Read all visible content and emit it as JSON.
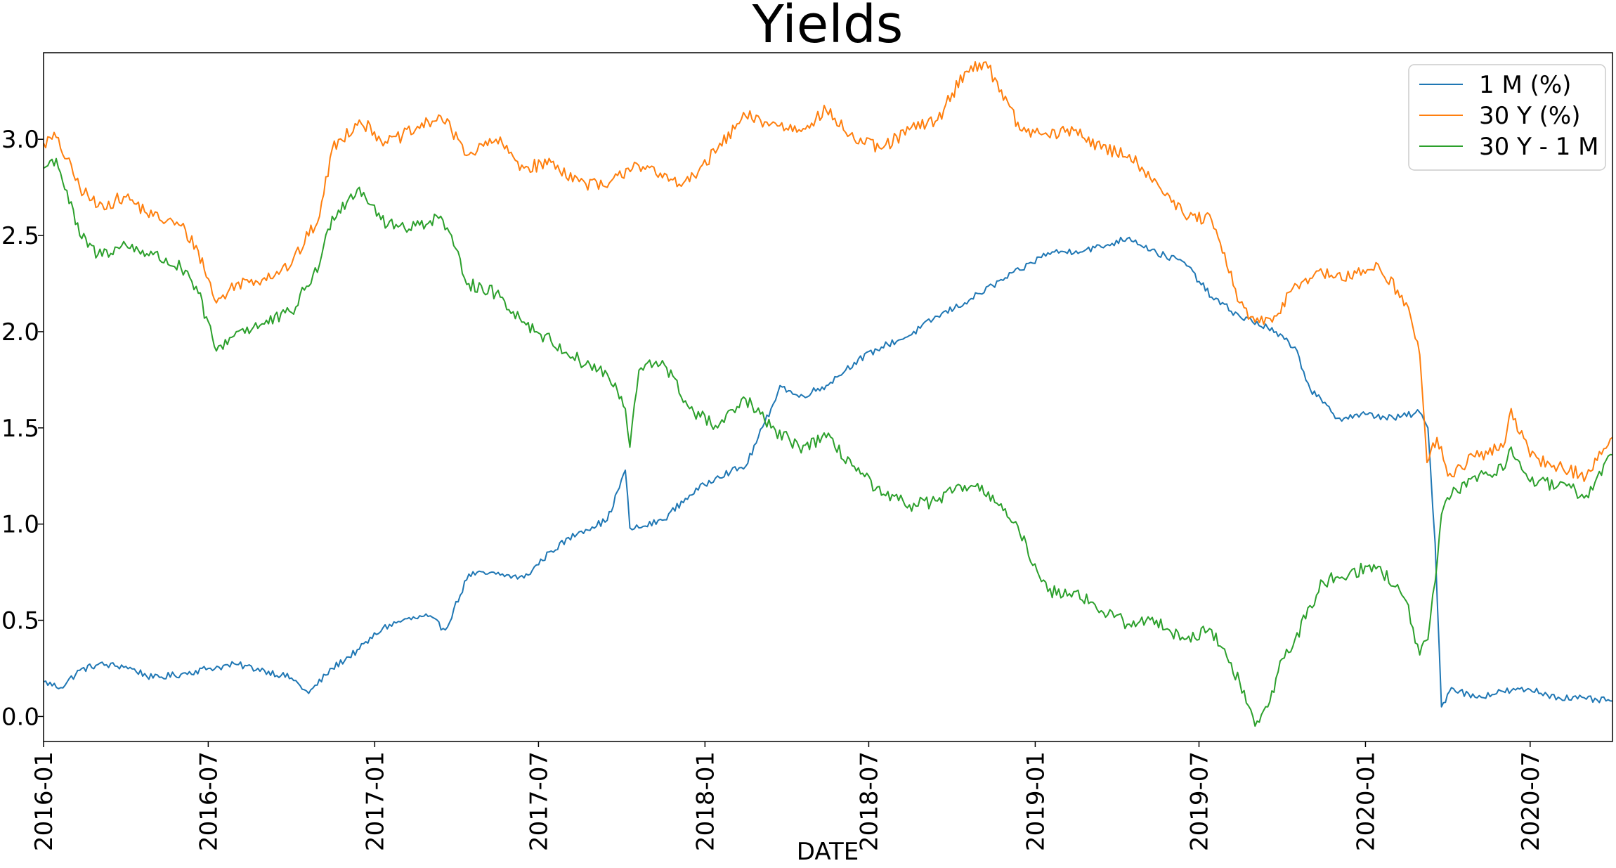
{
  "chart_data": {
    "type": "line",
    "title": "Yields",
    "xlabel": "DATE",
    "ylabel": "",
    "ylim": [
      -0.13,
      3.45
    ],
    "xlim": [
      "2016-01-01",
      "2020-09-30"
    ],
    "y_ticks": [
      0.0,
      0.5,
      1.0,
      1.5,
      2.0,
      2.5,
      3.0
    ],
    "y_tick_labels": [
      "0.0",
      "0.5",
      "1.0",
      "1.5",
      "2.0",
      "2.5",
      "3.0"
    ],
    "x_ticks": [
      "2016-01-01",
      "2016-07-01",
      "2017-01-01",
      "2017-07-01",
      "2018-01-01",
      "2018-07-01",
      "2019-01-01",
      "2019-07-01",
      "2020-01-01",
      "2020-07-01"
    ],
    "x_tick_labels": [
      "2016-01",
      "2016-07",
      "2017-01",
      "2017-07",
      "2018-01",
      "2018-07",
      "2019-01",
      "2019-07",
      "2020-01",
      "2020-07"
    ],
    "grid": false,
    "legend_position": "top-right",
    "series": [
      {
        "name": "1 M (%)",
        "color": "#1f77b4",
        "x": [
          "2016-01-01",
          "2016-01-20",
          "2016-02-10",
          "2016-03-01",
          "2016-04-01",
          "2016-05-01",
          "2016-06-01",
          "2016-07-01",
          "2016-08-01",
          "2016-09-01",
          "2016-10-01",
          "2016-10-20",
          "2016-11-15",
          "2016-12-15",
          "2017-01-10",
          "2017-02-01",
          "2017-03-01",
          "2017-03-20",
          "2017-04-15",
          "2017-05-15",
          "2017-06-15",
          "2017-07-15",
          "2017-08-15",
          "2017-09-15",
          "2017-10-05",
          "2017-10-10",
          "2017-10-20",
          "2017-11-15",
          "2017-12-15",
          "2018-01-15",
          "2018-02-15",
          "2018-03-15",
          "2018-03-25",
          "2018-04-15",
          "2018-05-15",
          "2018-06-15",
          "2018-07-15",
          "2018-08-15",
          "2018-09-15",
          "2018-10-15",
          "2018-11-15",
          "2018-12-15",
          "2019-01-15",
          "2019-02-15",
          "2019-03-15",
          "2019-04-15",
          "2019-05-15",
          "2019-06-15",
          "2019-07-15",
          "2019-08-15",
          "2019-09-15",
          "2019-10-15",
          "2019-11-01",
          "2019-12-01",
          "2020-01-01",
          "2020-02-01",
          "2020-03-01",
          "2020-03-10",
          "2020-03-18",
          "2020-03-25",
          "2020-04-05",
          "2020-05-01",
          "2020-06-01",
          "2020-07-01",
          "2020-08-01",
          "2020-09-01",
          "2020-09-30"
        ],
        "values": [
          0.18,
          0.15,
          0.24,
          0.27,
          0.26,
          0.2,
          0.22,
          0.25,
          0.27,
          0.24,
          0.2,
          0.12,
          0.25,
          0.35,
          0.46,
          0.5,
          0.52,
          0.45,
          0.74,
          0.74,
          0.72,
          0.86,
          0.96,
          1.02,
          1.28,
          0.98,
          0.98,
          1.02,
          1.15,
          1.25,
          1.3,
          1.6,
          1.72,
          1.66,
          1.72,
          1.84,
          1.92,
          1.98,
          2.08,
          2.15,
          2.24,
          2.32,
          2.41,
          2.42,
          2.44,
          2.49,
          2.41,
          2.36,
          2.18,
          2.08,
          2.02,
          1.92,
          1.7,
          1.55,
          1.57,
          1.55,
          1.58,
          1.5,
          0.9,
          0.05,
          0.15,
          0.1,
          0.13,
          0.14,
          0.1,
          0.09,
          0.08
        ]
      },
      {
        "name": "30 Y (%)",
        "color": "#ff7f0e",
        "x": [
          "2016-01-01",
          "2016-01-15",
          "2016-02-10",
          "2016-03-01",
          "2016-04-01",
          "2016-05-01",
          "2016-06-01",
          "2016-06-20",
          "2016-07-10",
          "2016-08-01",
          "2016-09-01",
          "2016-10-01",
          "2016-11-01",
          "2016-11-15",
          "2016-12-15",
          "2017-01-15",
          "2017-02-15",
          "2017-03-15",
          "2017-04-15",
          "2017-05-15",
          "2017-06-15",
          "2017-07-15",
          "2017-08-15",
          "2017-09-15",
          "2017-10-15",
          "2017-11-15",
          "2017-12-15",
          "2018-01-15",
          "2018-02-15",
          "2018-03-15",
          "2018-04-15",
          "2018-05-15",
          "2018-06-15",
          "2018-07-15",
          "2018-08-15",
          "2018-09-15",
          "2018-10-15",
          "2018-11-05",
          "2018-11-20",
          "2018-12-15",
          "2019-01-15",
          "2019-02-15",
          "2019-03-15",
          "2019-04-15",
          "2019-05-15",
          "2019-06-15",
          "2019-07-15",
          "2019-08-15",
          "2019-09-01",
          "2019-09-20",
          "2019-10-15",
          "2019-11-15",
          "2019-12-15",
          "2020-01-15",
          "2020-02-15",
          "2020-03-01",
          "2020-03-09",
          "2020-03-20",
          "2020-04-01",
          "2020-05-01",
          "2020-06-01",
          "2020-06-10",
          "2020-07-01",
          "2020-08-01",
          "2020-09-01",
          "2020-09-30"
        ],
        "values": [
          2.98,
          3.01,
          2.75,
          2.65,
          2.7,
          2.6,
          2.55,
          2.42,
          2.15,
          2.25,
          2.28,
          2.35,
          2.6,
          2.95,
          3.1,
          2.98,
          3.05,
          3.12,
          2.92,
          3.0,
          2.85,
          2.88,
          2.78,
          2.75,
          2.88,
          2.8,
          2.78,
          2.95,
          3.12,
          3.08,
          3.05,
          3.15,
          3.0,
          2.95,
          3.05,
          3.1,
          3.35,
          3.4,
          3.3,
          3.05,
          3.02,
          3.05,
          2.95,
          2.92,
          2.78,
          2.6,
          2.58,
          2.15,
          2.05,
          2.05,
          2.25,
          2.3,
          2.28,
          2.35,
          2.15,
          1.88,
          1.32,
          1.45,
          1.25,
          1.35,
          1.4,
          1.6,
          1.35,
          1.3,
          1.25,
          1.45
        ]
      },
      {
        "name": "30 Y - 1 M",
        "color": "#2ca02c",
        "x": [
          "2016-01-01",
          "2016-01-15",
          "2016-02-10",
          "2016-03-01",
          "2016-04-01",
          "2016-05-01",
          "2016-06-01",
          "2016-06-20",
          "2016-07-10",
          "2016-08-01",
          "2016-09-01",
          "2016-10-01",
          "2016-11-01",
          "2016-11-15",
          "2016-12-15",
          "2017-01-15",
          "2017-02-15",
          "2017-03-15",
          "2017-04-15",
          "2017-05-15",
          "2017-06-15",
          "2017-07-15",
          "2017-08-15",
          "2017-09-15",
          "2017-10-05",
          "2017-10-10",
          "2017-10-20",
          "2017-11-15",
          "2017-12-15",
          "2018-01-15",
          "2018-02-15",
          "2018-03-15",
          "2018-04-15",
          "2018-05-15",
          "2018-06-15",
          "2018-07-15",
          "2018-08-15",
          "2018-09-15",
          "2018-10-15",
          "2018-11-15",
          "2018-12-15",
          "2019-01-15",
          "2019-02-15",
          "2019-03-15",
          "2019-04-15",
          "2019-05-15",
          "2019-06-15",
          "2019-07-15",
          "2019-08-15",
          "2019-09-01",
          "2019-09-15",
          "2019-10-01",
          "2019-10-15",
          "2019-11-15",
          "2019-12-15",
          "2020-01-15",
          "2020-02-15",
          "2020-03-01",
          "2020-03-10",
          "2020-03-18",
          "2020-03-25",
          "2020-04-05",
          "2020-05-01",
          "2020-06-01",
          "2020-06-10",
          "2020-07-01",
          "2020-08-01",
          "2020-09-01",
          "2020-09-30"
        ],
        "values": [
          2.85,
          2.9,
          2.5,
          2.4,
          2.45,
          2.4,
          2.33,
          2.2,
          1.9,
          2.0,
          2.04,
          2.1,
          2.35,
          2.6,
          2.75,
          2.55,
          2.55,
          2.6,
          2.25,
          2.2,
          2.05,
          1.95,
          1.85,
          1.78,
          1.6,
          1.4,
          1.8,
          1.85,
          1.6,
          1.5,
          1.65,
          1.5,
          1.4,
          1.45,
          1.3,
          1.15,
          1.1,
          1.12,
          1.2,
          1.15,
          0.95,
          0.65,
          0.65,
          0.55,
          0.48,
          0.5,
          0.4,
          0.45,
          0.18,
          -0.05,
          0.05,
          0.3,
          0.4,
          0.7,
          0.75,
          0.78,
          0.6,
          0.32,
          0.4,
          0.7,
          1.05,
          1.15,
          1.25,
          1.28,
          1.4,
          1.22,
          1.2,
          1.15,
          1.36
        ]
      }
    ]
  }
}
